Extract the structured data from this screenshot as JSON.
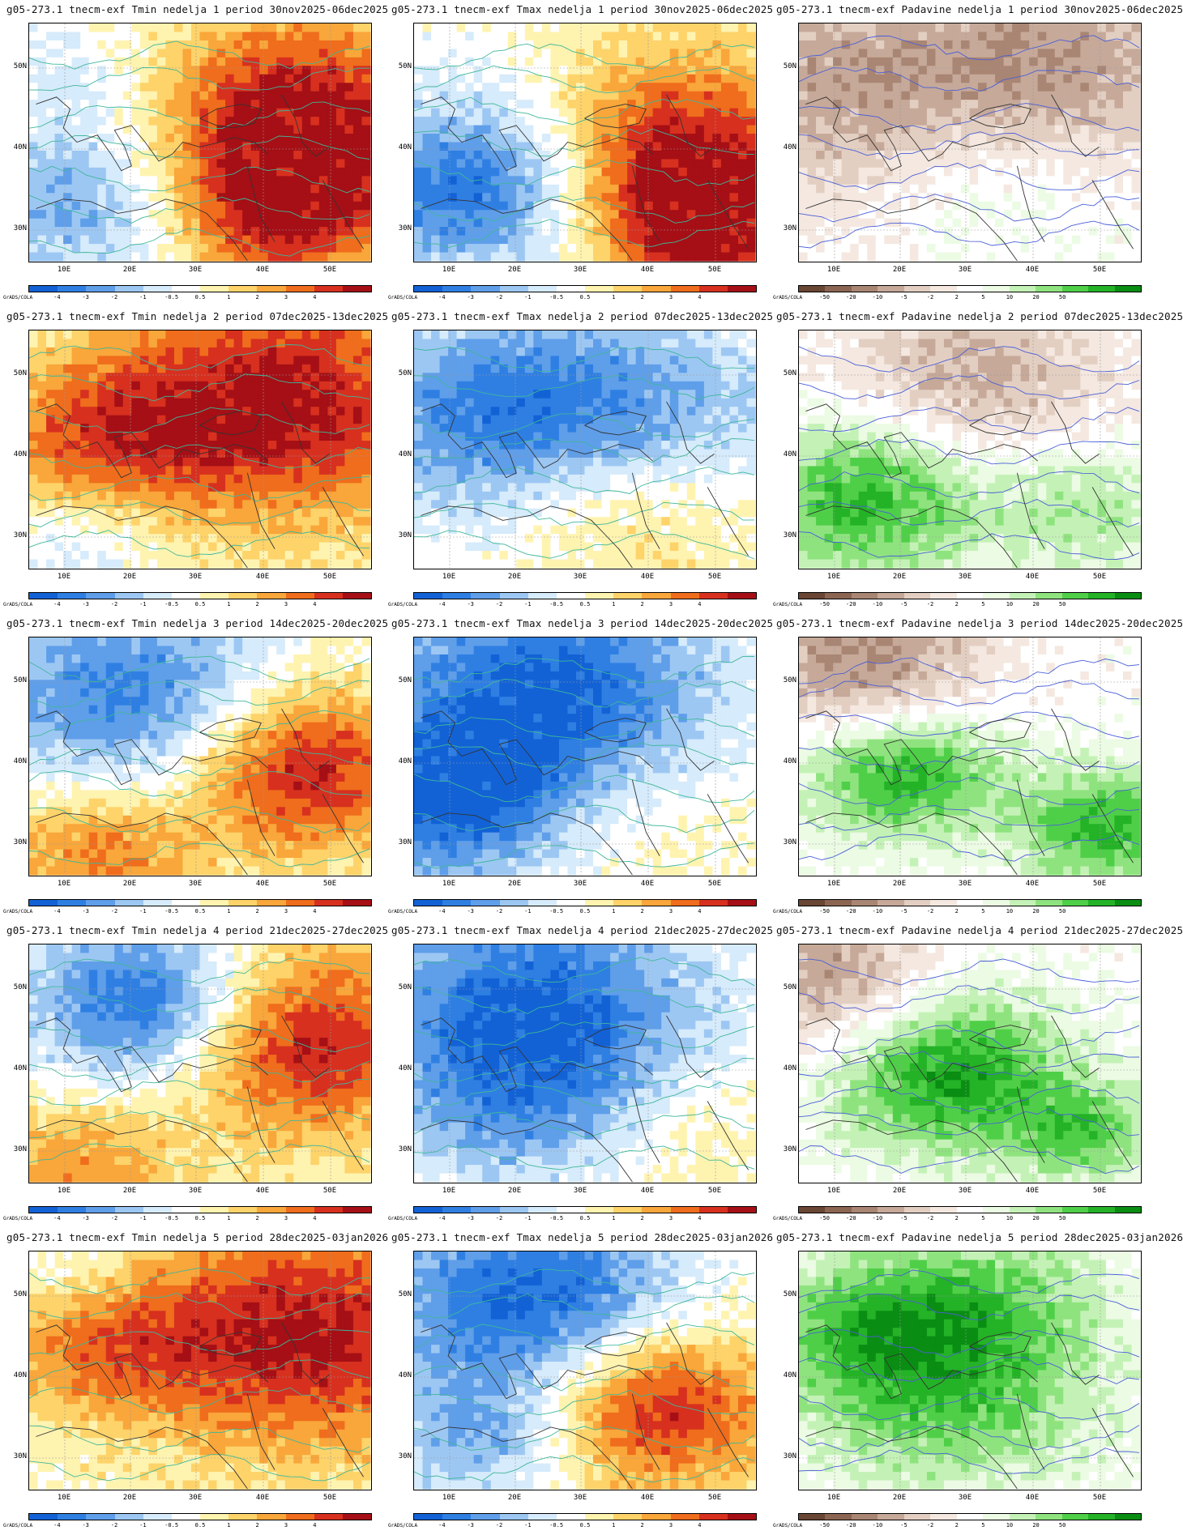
{
  "columns": [
    "Tmin",
    "Tmax",
    "Padavine"
  ],
  "weeks": [
    {
      "n": "1",
      "period": "30nov2025-06dec2025"
    },
    {
      "n": "2",
      "period": "07dec2025-13dec2025"
    },
    {
      "n": "3",
      "period": "14dec2025-20dec2025"
    },
    {
      "n": "4",
      "period": "21dec2025-27dec2025"
    },
    {
      "n": "5",
      "period": "28dec2025-03jan2026"
    }
  ],
  "panels": [
    {
      "title": "g05-273.1 tnecm-exf Tmin nedelja 1 period 30nov2025-06dec2025"
    },
    {
      "title": "g05-273.1 tnecm-exf Tmax nedelja 1 period 30nov2025-06dec2025"
    },
    {
      "title": "g05-273.1 tnecm-exf Padavine nedelja 1 period 30nov2025-06dec2025"
    },
    {
      "title": "g05-273.1 tnecm-exf Tmin nedelja 2 period 07dec2025-13dec2025"
    },
    {
      "title": "g05-273.1 tnecm-exf Tmax nedelja 2 period 07dec2025-13dec2025"
    },
    {
      "title": "g05-273.1 tnecm-exf Padavine nedelja 2 period 07dec2025-13dec2025"
    },
    {
      "title": "g05-273.1 tnecm-exf Tmin nedelja 3 period 14dec2025-20dec2025"
    },
    {
      "title": "g05-273.1 tnecm-exf Tmax nedelja 3 period 14dec2025-20dec2025"
    },
    {
      "title": "g05-273.1 tnecm-exf Padavine nedelja 3 period 14dec2025-20dec2025"
    },
    {
      "title": "g05-273.1 tnecm-exf Tmin nedelja 4 period 21dec2025-27dec2025"
    },
    {
      "title": "g05-273.1 tnecm-exf Tmax nedelja 4 period 21dec2025-27dec2025"
    },
    {
      "title": "g05-273.1 tnecm-exf Padavine nedelja 4 period 21dec2025-27dec2025"
    },
    {
      "title": "g05-273.1 tnecm-exf Tmin nedelja 5 period 28dec2025-03jan2026"
    },
    {
      "title": "g05-273.1 tnecm-exf Tmax nedelja 5 period 28dec2025-03jan2026"
    },
    {
      "title": "g05-273.1 tnecm-exf Padavine nedelja 5 period 28dec2025-03jan2026"
    }
  ],
  "axes": {
    "lat_labels": [
      "50N",
      "40N",
      "30N"
    ],
    "lon_labels": [
      "10E",
      "20E",
      "30E",
      "40E",
      "50E"
    ],
    "credit": "GrADS/COLA"
  },
  "temp_scale": {
    "labels": [
      "-4",
      "-3",
      "-2",
      "-1",
      "-0.5",
      "0.5",
      "1",
      "2",
      "3",
      "4"
    ],
    "colors": [
      "#1262d6",
      "#2f7fe3",
      "#5f9ee9",
      "#9dc7f3",
      "#d6ebfb",
      "#ffffff",
      "#fff3b0",
      "#fdd36a",
      "#f9a63a",
      "#ef6d1c",
      "#d7301f",
      "#a50f15"
    ]
  },
  "precip_scale": {
    "labels": [
      "-50",
      "-20",
      "-10",
      "-5",
      "-2",
      "2",
      "5",
      "10",
      "20",
      "50"
    ],
    "colors": [
      "#6a4634",
      "#8c6552",
      "#a98573",
      "#c6a999",
      "#e3cfc2",
      "#f4e8e0",
      "#ffffff",
      "#ecfbe4",
      "#c4f2b6",
      "#8fe37f",
      "#4fcf48",
      "#24b227",
      "#0a8d13"
    ]
  }
}
